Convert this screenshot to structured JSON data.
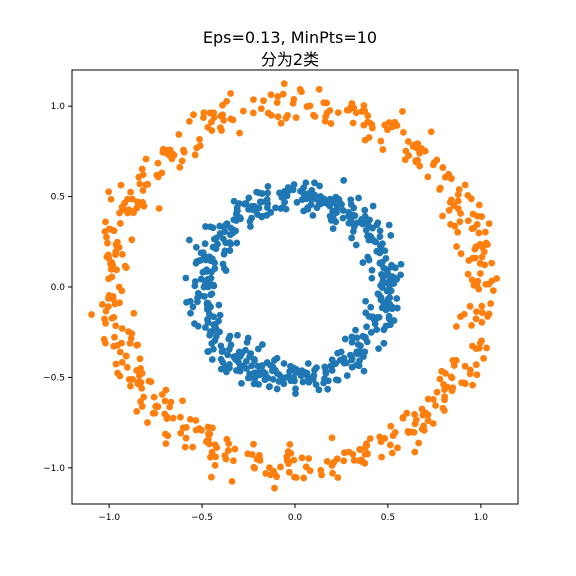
{
  "chart_data": {
    "type": "scatter",
    "title": "Eps=0.13, MinPts=10",
    "subtitle": "分为2类",
    "xlim": [
      -1.2,
      1.2
    ],
    "ylim": [
      -1.2,
      1.2
    ],
    "xticks": [
      -1.0,
      -0.5,
      0.0,
      0.5,
      1.0
    ],
    "yticks": [
      -1.0,
      -0.5,
      0.0,
      0.5,
      1.0
    ],
    "xtick_labels": [
      "−1.0",
      "−0.5",
      "0.0",
      "0.5",
      "1.0"
    ],
    "ytick_labels": [
      "−1.0",
      "−0.5",
      "0.0",
      "0.5",
      "1.0"
    ],
    "grid": false,
    "series": [
      {
        "color": "#1f77b4",
        "shape": "ring",
        "center": [
          0,
          0
        ],
        "radius": 0.5,
        "noise": 0.05,
        "n_points": 500
      },
      {
        "color": "#ff7f0e",
        "shape": "ring",
        "center": [
          0,
          0
        ],
        "radius": 1.0,
        "noise": 0.05,
        "n_points": 500
      }
    ]
  }
}
